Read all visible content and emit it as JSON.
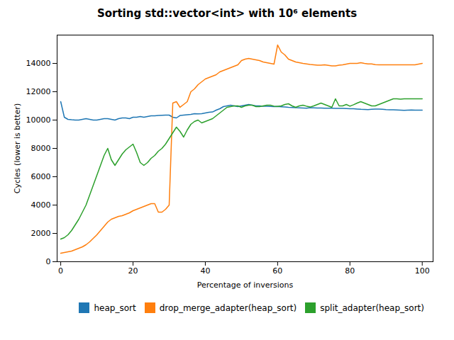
{
  "chart_data": {
    "type": "line",
    "title": "Sorting std::vector<int> with 10⁶ elements",
    "x_label": "Percentage of inversions",
    "y_label": "Cycles (lower is better)",
    "xlim": [
      -1,
      103
    ],
    "ylim": [
      0,
      16000
    ],
    "xticks": [
      0,
      20,
      40,
      60,
      80,
      100
    ],
    "yticks": [
      0,
      2000,
      4000,
      6000,
      8000,
      10000,
      12000,
      14000
    ],
    "grid": false,
    "legend": "lower right",
    "x": [
      0,
      1,
      2,
      3,
      4,
      5,
      6,
      7,
      8,
      9,
      10,
      11,
      12,
      13,
      14,
      15,
      16,
      17,
      18,
      19,
      20,
      21,
      22,
      23,
      24,
      25,
      26,
      27,
      28,
      29,
      30,
      31,
      32,
      33,
      34,
      35,
      36,
      37,
      38,
      39,
      40,
      41,
      42,
      43,
      44,
      45,
      46,
      47,
      48,
      49,
      50,
      51,
      52,
      53,
      54,
      55,
      56,
      57,
      58,
      59,
      60,
      61,
      62,
      63,
      64,
      65,
      66,
      67,
      68,
      69,
      70,
      71,
      72,
      73,
      74,
      75,
      76,
      77,
      78,
      79,
      80,
      81,
      82,
      83,
      84,
      85,
      86,
      87,
      88,
      89,
      90,
      91,
      92,
      93,
      94,
      95,
      96,
      97,
      98,
      99,
      100
    ],
    "series": [
      {
        "name": "heap_sort",
        "color": "#1f77b4",
        "values": [
          11300,
          10200,
          10050,
          10020,
          10000,
          10000,
          10050,
          10100,
          10050,
          10000,
          10000,
          10050,
          10100,
          10100,
          10050,
          10000,
          10100,
          10150,
          10150,
          10100,
          10200,
          10200,
          10250,
          10200,
          10250,
          10300,
          10300,
          10320,
          10340,
          10350,
          10350,
          10200,
          10150,
          10320,
          10350,
          10380,
          10400,
          10450,
          10440,
          10450,
          10500,
          10550,
          10570,
          10700,
          10800,
          10950,
          11000,
          11050,
          11000,
          10950,
          11000,
          11050,
          11100,
          11050,
          11000,
          11000,
          10980,
          10970,
          10960,
          10950,
          10960,
          10940,
          10920,
          10900,
          10890,
          10870,
          10860,
          10850,
          10840,
          10870,
          10860,
          10850,
          10850,
          10840,
          10840,
          10840,
          10830,
          10820,
          10820,
          10810,
          10800,
          10800,
          10780,
          10760,
          10750,
          10740,
          10760,
          10770,
          10780,
          10760,
          10740,
          10730,
          10720,
          10710,
          10700,
          10690,
          10700,
          10710,
          10700,
          10700,
          10700
        ]
      },
      {
        "name": "drop_merge_adapter(heap_sort)",
        "color": "#ff7f0e",
        "values": [
          600,
          650,
          700,
          750,
          850,
          950,
          1050,
          1200,
          1400,
          1650,
          1900,
          2200,
          2500,
          2800,
          3000,
          3100,
          3200,
          3250,
          3350,
          3450,
          3600,
          3700,
          3800,
          3900,
          4000,
          4100,
          4100,
          3500,
          3500,
          3700,
          4000,
          11200,
          11300,
          10900,
          11100,
          11300,
          12000,
          12200,
          12500,
          12700,
          12900,
          13000,
          13100,
          13200,
          13400,
          13500,
          13600,
          13700,
          13800,
          13900,
          14200,
          14300,
          14350,
          14300,
          14250,
          14200,
          14100,
          14050,
          14000,
          13950,
          15300,
          14800,
          14600,
          14300,
          14200,
          14100,
          14050,
          14000,
          13960,
          13920,
          13900,
          13880,
          13870,
          13900,
          13860,
          13820,
          13820,
          13870,
          13900,
          13950,
          14000,
          14000,
          14000,
          14050,
          14000,
          13960,
          13960,
          13910,
          13900,
          13900,
          13900,
          13900,
          13900,
          13900,
          13900,
          13900,
          13900,
          13900,
          13900,
          13950,
          14000
        ]
      },
      {
        "name": "split_adapter(heap_sort)",
        "color": "#2ca02c",
        "values": [
          1600,
          1700,
          1900,
          2200,
          2600,
          3000,
          3500,
          4000,
          4700,
          5400,
          6100,
          6800,
          7500,
          8000,
          7200,
          6800,
          7200,
          7600,
          7900,
          8100,
          8300,
          7700,
          7000,
          6800,
          7000,
          7300,
          7500,
          7800,
          8000,
          8300,
          8700,
          9100,
          9500,
          9200,
          8800,
          9300,
          9700,
          9900,
          10000,
          9800,
          9900,
          10000,
          10100,
          10300,
          10500,
          10700,
          10900,
          10950,
          11000,
          11000,
          10900,
          11000,
          11050,
          11050,
          10950,
          10950,
          11000,
          11050,
          11050,
          10980,
          10960,
          11000,
          11100,
          11150,
          11000,
          10900,
          11000,
          11050,
          10980,
          10920,
          11000,
          11100,
          11200,
          11100,
          11000,
          10900,
          11500,
          11000,
          11000,
          11100,
          10980,
          11080,
          11200,
          11300,
          11200,
          11100,
          11000,
          11000,
          11100,
          11200,
          11300,
          11400,
          11500,
          11500,
          11480,
          11500,
          11500,
          11500,
          11500,
          11500,
          11500
        ]
      }
    ]
  }
}
